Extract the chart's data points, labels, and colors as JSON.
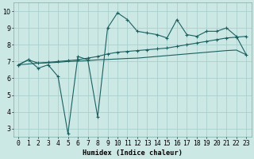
{
  "xlabel": "Humidex (Indice chaleur)",
  "background_color": "#cce8e5",
  "grid_color": "#aad0cc",
  "line_color": "#1a6060",
  "x_data": [
    0,
    1,
    2,
    3,
    4,
    5,
    6,
    7,
    8,
    9,
    10,
    11,
    12,
    13,
    14,
    15,
    16,
    17,
    18,
    19,
    20,
    21,
    22,
    23
  ],
  "series1": [
    6.8,
    7.1,
    6.6,
    6.8,
    6.1,
    2.7,
    7.3,
    7.1,
    3.7,
    9.0,
    9.9,
    9.5,
    8.8,
    8.7,
    8.6,
    8.4,
    9.5,
    8.6,
    8.5,
    8.8,
    8.8,
    9.0,
    8.5,
    7.4
  ],
  "series2": [
    6.8,
    7.1,
    6.9,
    6.95,
    7.0,
    7.05,
    7.1,
    7.2,
    7.3,
    7.45,
    7.55,
    7.6,
    7.65,
    7.7,
    7.75,
    7.8,
    7.9,
    8.0,
    8.1,
    8.2,
    8.3,
    8.4,
    8.45,
    8.5
  ],
  "series3": [
    6.8,
    6.85,
    6.9,
    6.92,
    6.95,
    7.0,
    7.02,
    7.05,
    7.1,
    7.12,
    7.15,
    7.18,
    7.2,
    7.25,
    7.3,
    7.35,
    7.4,
    7.45,
    7.5,
    7.55,
    7.6,
    7.65,
    7.68,
    7.4
  ],
  "ylim": [
    2.5,
    10.5
  ],
  "xlim": [
    -0.5,
    23.5
  ],
  "yticks": [
    3,
    4,
    5,
    6,
    7,
    8,
    9,
    10
  ],
  "xticks": [
    0,
    1,
    2,
    3,
    4,
    5,
    6,
    7,
    8,
    9,
    10,
    11,
    12,
    13,
    14,
    15,
    16,
    17,
    18,
    19,
    20,
    21,
    22,
    23
  ],
  "tick_fontsize": 5.8,
  "label_fontsize": 6.2
}
